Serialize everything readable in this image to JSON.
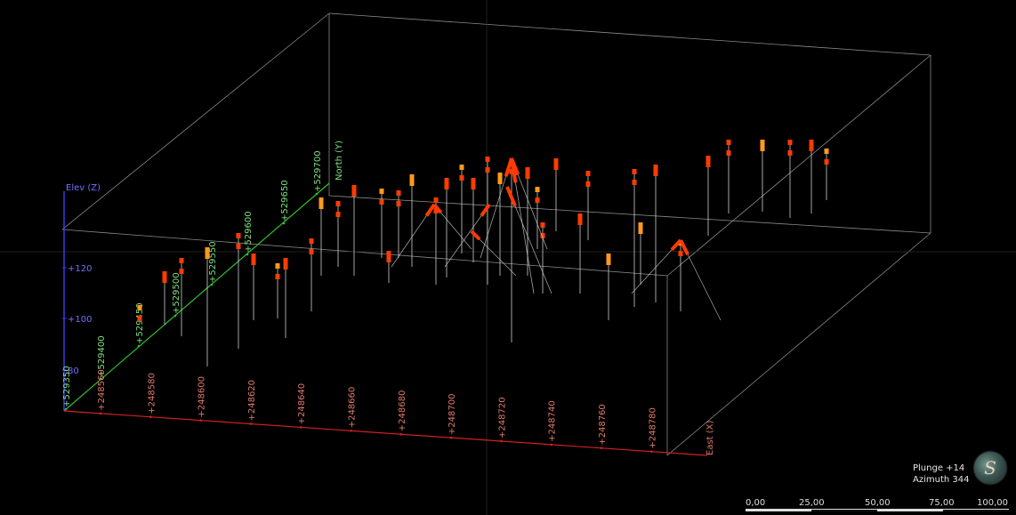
{
  "axes": {
    "elev_label": "Elev (Z)",
    "north_label": "North (Y)",
    "east_label": "East (X)",
    "elev_ticks": [
      "+120",
      "+100",
      "80"
    ],
    "north_ticks": [
      "+529350",
      "+529400",
      "+529450",
      "+529500",
      "+529550",
      "+529600",
      "+529650",
      "+529700"
    ],
    "east_ticks": [
      "+248560",
      "+248580",
      "+248600",
      "+248620",
      "+248640",
      "+248660",
      "+248680",
      "+248700",
      "+248720",
      "+248740",
      "+248760",
      "+248780"
    ]
  },
  "orientation": {
    "plunge": "Plunge +14",
    "azimuth": "Azimuth 344"
  },
  "scale": {
    "labels": [
      "0,00",
      "25,00",
      "50,00",
      "75,00",
      "100,00"
    ]
  },
  "colors": {
    "background": "#000000",
    "box": "#8a8a8a",
    "elev_axis": "#3a3adf",
    "north_axis": "#2fbf2f",
    "east_axis": "#d02020",
    "elev_text": "#6f6fff",
    "north_text": "#7fe07f",
    "east_text": "#e07a6a",
    "collar_hot": "#ff3b00",
    "collar_warm": "#ff9a1a",
    "trace": "#d8d8d8"
  }
}
